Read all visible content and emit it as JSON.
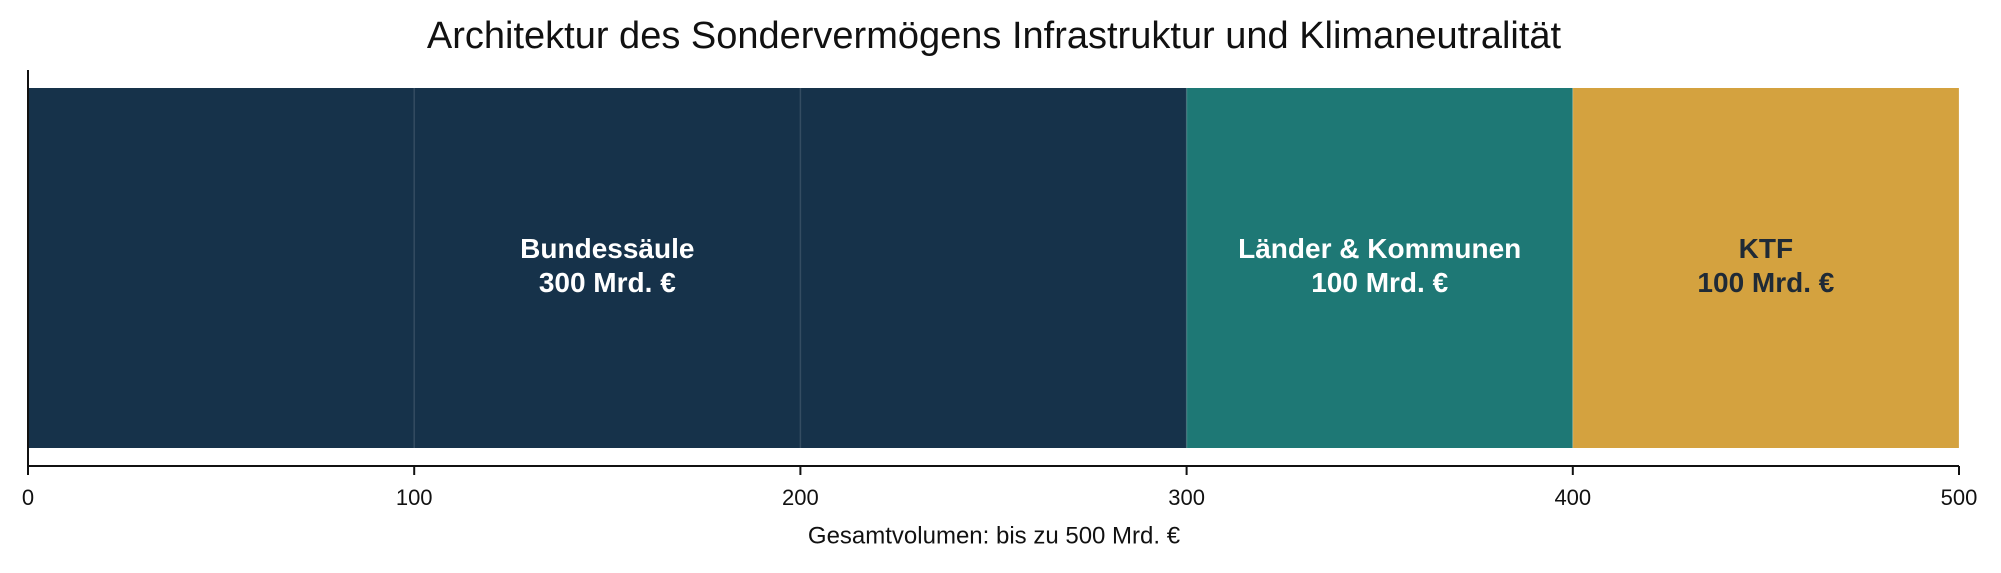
{
  "chart_data": {
    "type": "bar",
    "orientation": "horizontal",
    "stacked": true,
    "title": "Architektur des Sondervermögens Infrastruktur und Klimaneutralität",
    "xlabel": "Gesamtvolumen: bis zu 500 Mrd. €",
    "series": [
      {
        "name": "Bundessäule",
        "color": "#16324a",
        "label_color": "#ffffff",
        "values": [
          300
        ],
        "value_labels": [
          "300 Mrd. €"
        ]
      },
      {
        "name": "Länder & Kommunen",
        "color": "#1e7875",
        "label_color": "#ffffff",
        "values": [
          100
        ],
        "value_labels": [
          "100 Mrd. €"
        ]
      },
      {
        "name": "KTF",
        "color": "#d4a23f",
        "label_color": "#1f2a36",
        "values": [
          100
        ],
        "value_labels": [
          "100 Mrd. €"
        ]
      }
    ],
    "xlim": [
      0,
      500
    ],
    "xticks": [
      0,
      100,
      200,
      300,
      400,
      500
    ],
    "grid": true
  }
}
